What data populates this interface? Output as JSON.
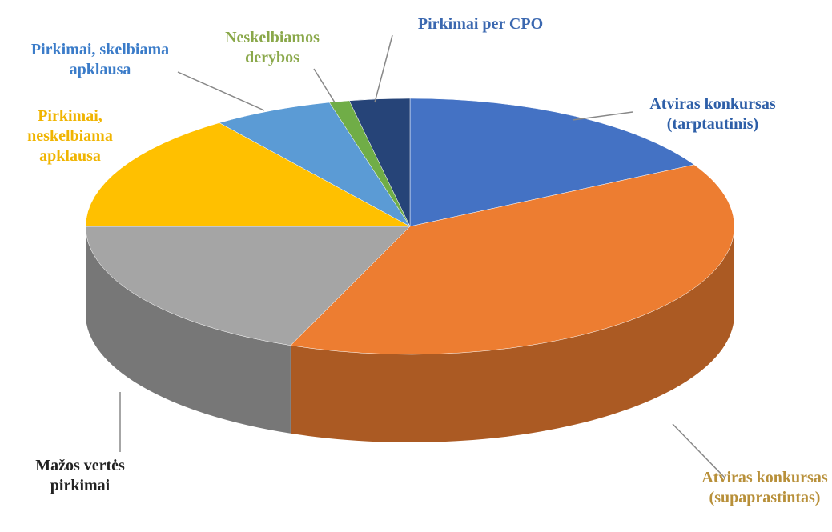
{
  "chart_data": {
    "type": "pie",
    "categories": [
      "Atviras konkursas (tarptautinis)",
      "Atviras konkursas (supaprastintas)",
      "Mažos vertės pirkimai",
      "Pirkimai, neskelbiama apklausa",
      "Pirkimai, skelbiama apklausa",
      "Neskelbiamos derybos",
      "Pirkimai per CPO"
    ],
    "values": [
      17,
      39,
      19,
      15,
      6,
      1,
      3
    ],
    "colors": [
      "#4472c4",
      "#ed7d31",
      "#a5a5a5",
      "#ffc000",
      "#5b9bd5",
      "#70ad47",
      "#264478"
    ]
  }
}
